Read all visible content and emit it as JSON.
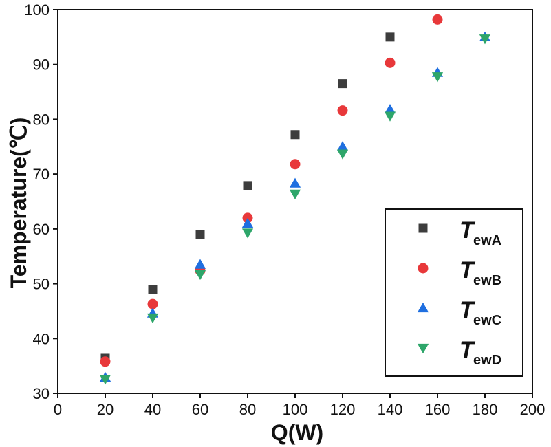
{
  "chart_data": {
    "type": "scatter",
    "title": "",
    "xlabel": "Q(W)",
    "ylabel": "Temperature(℃)",
    "xlim": [
      0,
      200
    ],
    "ylim": [
      30,
      100
    ],
    "xticks": [
      0,
      20,
      40,
      60,
      80,
      100,
      120,
      140,
      160,
      180,
      200
    ],
    "yticks": [
      30,
      40,
      50,
      60,
      70,
      80,
      90,
      100
    ],
    "grid": false,
    "legend_position": "bottom-right",
    "series": [
      {
        "name": "T",
        "subscript": "ewA",
        "marker": "square",
        "color": "#3d3d3d",
        "x": [
          20,
          40,
          60,
          80,
          100,
          120,
          140
        ],
        "y": [
          36.4,
          49.0,
          59.0,
          67.9,
          77.2,
          86.5,
          95.0
        ]
      },
      {
        "name": "T",
        "subscript": "ewB",
        "marker": "circle",
        "color": "#e8383a",
        "x": [
          20,
          40,
          60,
          80,
          100,
          120,
          140,
          160
        ],
        "y": [
          35.8,
          46.3,
          52.4,
          62.0,
          71.8,
          81.6,
          90.3,
          98.2
        ]
      },
      {
        "name": "T",
        "subscript": "ewC",
        "marker": "triangle-up",
        "color": "#1f6fe0",
        "x": [
          20,
          40,
          60,
          80,
          100,
          120,
          140,
          160,
          180
        ],
        "y": [
          32.9,
          44.6,
          53.5,
          61.0,
          68.3,
          75.0,
          81.8,
          88.5,
          95.0
        ]
      },
      {
        "name": "T",
        "subscript": "ewD",
        "marker": "triangle-down",
        "color": "#2ea66a",
        "x": [
          20,
          40,
          60,
          80,
          100,
          120,
          140,
          160,
          180
        ],
        "y": [
          32.6,
          43.8,
          51.7,
          59.3,
          66.4,
          73.7,
          80.6,
          87.8,
          94.7
        ]
      }
    ]
  }
}
